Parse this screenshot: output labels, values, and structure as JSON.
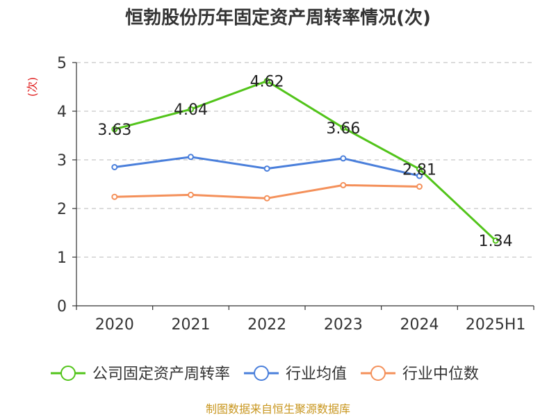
{
  "chart_data": {
    "type": "line",
    "title": "恒勃股份历年固定资产周转率情况(次)",
    "ylabel": "(次)",
    "xlabel": "",
    "categories": [
      "2020",
      "2021",
      "2022",
      "2023",
      "2024",
      "2025H1"
    ],
    "ylim": [
      0,
      5
    ],
    "yticks": [
      0,
      1,
      2,
      3,
      4,
      5
    ],
    "grid": true,
    "legend_position": "bottom",
    "series": [
      {
        "name": "公司固定资产周转率",
        "color": "#52c41a",
        "values": [
          3.63,
          4.04,
          4.62,
          3.66,
          2.81,
          1.34
        ],
        "labels": [
          "3.63",
          "4.04",
          "4.62",
          "3.66",
          "2.81",
          "1.34"
        ]
      },
      {
        "name": "行业均值",
        "color": "#4a7fdb",
        "values": [
          2.85,
          3.06,
          2.82,
          3.03,
          2.67,
          null
        ]
      },
      {
        "name": "行业中位数",
        "color": "#f4905a",
        "values": [
          2.24,
          2.28,
          2.21,
          2.48,
          2.45,
          null
        ]
      }
    ],
    "source": "制图数据来自恒生聚源数据库"
  }
}
